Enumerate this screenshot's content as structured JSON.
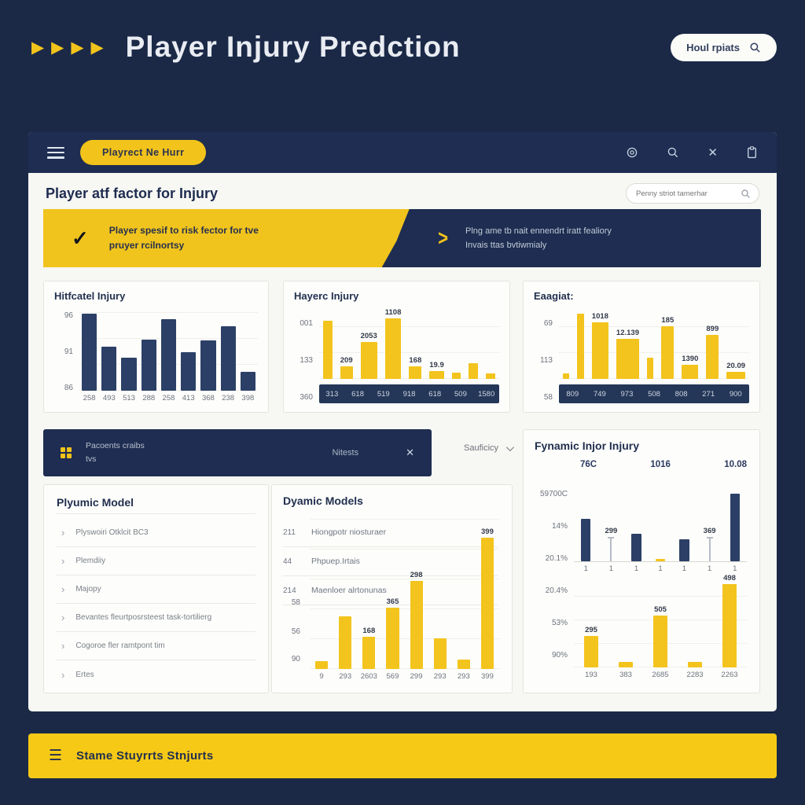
{
  "colors": {
    "page_navy": "#1b2947",
    "toolbar_navy": "#1e2d51",
    "accent_yellow": "#f2c31b",
    "bar_navy": "#2c4067",
    "bar_yellow": "#f3c41d",
    "card_bg": "#f7f7f3"
  },
  "header": {
    "title": "Player Injury Predction",
    "search_button": "Houl rpiats"
  },
  "toolbar": {
    "menu_button": "Playrect Ne Hurr"
  },
  "section": {
    "heading": "Player atf factor for Injury",
    "search_placeholder": "Penny striot tamerhar"
  },
  "banner": {
    "yellow_line1": "Player spesif to risk fector for tve",
    "yellow_line2": "pruyer rcilnortsy",
    "navy_line1": "Plng ame tb nait ennendrt iratt fealiory",
    "navy_line2": "Invais ttas bvtiwmialy"
  },
  "mid_banner": {
    "line1": "Pacoents craibs",
    "line2": "tvs",
    "right_label": "Nitests"
  },
  "dropdown": {
    "label": "Sauficicy"
  },
  "model_list": {
    "title": "Plyumic Model",
    "items": [
      "Plyswoiri Otklcit BC3",
      "Plemdiiy",
      "Majopy",
      "Bevantes fleurtposrsteest task-tortilierg",
      "Cogoroe fler ramtpont tim",
      "Ertes"
    ]
  },
  "dyamic_stats": [
    {
      "num": "211",
      "text": "Hiongpotr niosturaer"
    },
    {
      "num": "44",
      "text": "Phpuep.Irtais"
    },
    {
      "num": "214",
      "text": "Maenloer alrtonunas"
    }
  ],
  "fynamic": {
    "title": "Fynamic Injor Injury",
    "headers": [
      "76C",
      "1016",
      "10.08"
    ],
    "side_labels": [
      "59700C",
      "14%",
      "20.1%",
      "20.4%",
      "53%",
      "90%"
    ]
  },
  "footer_bar": {
    "label": "Stame Stuyrrts Stnjurts"
  },
  "chart_data": [
    {
      "id": "historical",
      "type": "bar",
      "title": "Hitfcatel Injury",
      "bar_color": "#2c4067",
      "ymax": 100,
      "yticks": [
        "96",
        "91",
        "86"
      ],
      "categories": [
        "258",
        "493",
        "513",
        "288",
        "258",
        "413",
        "368",
        "238",
        "398"
      ],
      "values": [
        93,
        53,
        40,
        62,
        87,
        47,
        61,
        78,
        23
      ]
    },
    {
      "id": "hayers",
      "type": "bar",
      "title": "Hayerc Injury",
      "bar_color": "#f3c41d",
      "ymax": 100,
      "yticks": [
        "001",
        "133",
        "360"
      ],
      "values": [
        82,
        18,
        52,
        88,
        18,
        11,
        9,
        22,
        8
      ],
      "labels": [
        "",
        "209",
        "2053",
        "1108",
        "168",
        "19.9",
        "",
        "",
        ""
      ],
      "footer": [
        "313",
        "618",
        "519",
        "918",
        "618",
        "509",
        "1580"
      ]
    },
    {
      "id": "eaagiat",
      "type": "bar",
      "title": "Eaagiat:",
      "bar_color": "#f3c41d",
      "ymax": 100,
      "yticks": [
        "69",
        "113",
        "58"
      ],
      "values": [
        8,
        92,
        80,
        57,
        30,
        74,
        20,
        62,
        10
      ],
      "labels": [
        "",
        "",
        "1018",
        "12.139",
        "",
        "185",
        "1390",
        "899",
        "20.09"
      ],
      "footer": [
        "809",
        "749",
        "973",
        "508",
        "808",
        "271",
        "900"
      ]
    },
    {
      "id": "dyamic",
      "type": "bar",
      "title": "Dyamic Models",
      "bar_color": "#f3c41d",
      "ymax": 100,
      "yticks": [
        "58",
        "56",
        "90"
      ],
      "categories": [
        "9",
        "293",
        "2603",
        "569",
        "299",
        "293",
        "293",
        "399"
      ],
      "values": [
        5,
        33,
        20,
        38,
        55,
        19,
        6,
        82
      ],
      "labels": [
        "",
        "",
        "168",
        "365",
        "298",
        "",
        "",
        "399"
      ]
    },
    {
      "id": "fynamic_top",
      "type": "bar",
      "bar_color": "#2c4067",
      "ymax": 100,
      "values": [
        58,
        33,
        38,
        3,
        30,
        33,
        92
      ],
      "types": [
        "bar",
        "line",
        "bar",
        "bar",
        "bar",
        "line",
        "bar"
      ],
      "bar_colors": {
        "3": "#f3c41d"
      },
      "labels": [
        "",
        "299",
        "",
        "",
        "",
        "369",
        ""
      ],
      "categories": [
        "1",
        "1",
        "1",
        "1",
        "1",
        "1",
        "1"
      ]
    },
    {
      "id": "fynamic_bottom",
      "type": "bar",
      "bar_color": "#f3c41d",
      "ymax": 100,
      "values": [
        33,
        6,
        55,
        6,
        88
      ],
      "labels": [
        "295",
        "",
        "505",
        "",
        "498"
      ],
      "categories": [
        "193",
        "383",
        "2685",
        "2283",
        "2263"
      ]
    }
  ]
}
